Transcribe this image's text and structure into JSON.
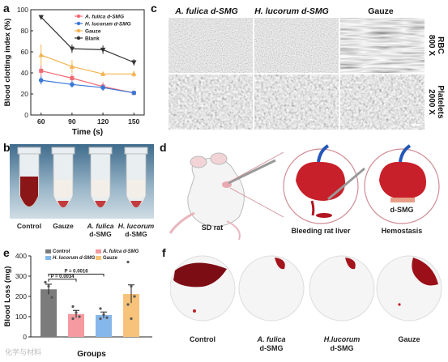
{
  "panels": {
    "a": "a",
    "b": "b",
    "c": "c",
    "d": "d",
    "e": "e",
    "f": "f"
  },
  "chart_data": [
    {
      "type": "line",
      "panel": "a",
      "xlabel": "Time (s)",
      "ylabel": "Blood clotting index (%)",
      "x": [
        60,
        90,
        120,
        150
      ],
      "xticks": [
        "60",
        "90",
        "120",
        "150"
      ],
      "yticks": [
        "0",
        "20",
        "40",
        "60",
        "80",
        "100"
      ],
      "ylim": [
        0,
        100
      ],
      "legend_placement": "top-right",
      "series": [
        {
          "name": "A. fulica d-SMG",
          "color": "#f06b74",
          "marker": "square",
          "values": [
            42,
            35,
            27,
            21
          ],
          "err": [
            5,
            4,
            4,
            2
          ]
        },
        {
          "name": "H. lucorum d-SMG",
          "color": "#3a78d8",
          "marker": "circle",
          "values": [
            33,
            29,
            26,
            21
          ],
          "err": [
            4,
            3,
            3,
            2
          ]
        },
        {
          "name": "Gauze",
          "color": "#f5b24d",
          "marker": "triangle",
          "values": [
            57,
            46,
            39,
            39
          ],
          "err": [
            10,
            6,
            2,
            3
          ]
        },
        {
          "name": "Blank",
          "color": "#333333",
          "marker": "down-triangle",
          "values": [
            93,
            63,
            62,
            50
          ],
          "err": [
            2,
            4,
            4,
            3
          ]
        }
      ]
    },
    {
      "type": "bar",
      "panel": "e",
      "xlabel": "Groups",
      "ylabel": "Blood Loss (mg)",
      "yticks": [
        "0",
        "100",
        "200",
        "300",
        "400"
      ],
      "ylim": [
        0,
        400
      ],
      "legend_placement": "top",
      "series": [
        {
          "name": "Control",
          "color": "#7b7b7b",
          "value": 235,
          "err": 25,
          "points": [
            270,
            250,
            195
          ]
        },
        {
          "name": "A. fulica d-SMG",
          "color": "#f59aa0",
          "value": 113,
          "err": 18,
          "points": [
            150,
            120,
            100,
            90
          ]
        },
        {
          "name": "H. lucorum d-SMG",
          "color": "#86b7ea",
          "value": 108,
          "err": 15,
          "points": [
            140,
            110,
            95,
            90
          ]
        },
        {
          "name": "Gauze",
          "color": "#f7c37a",
          "value": 212,
          "err": 45,
          "points": [
            370,
            250,
            200,
            160,
            90
          ]
        }
      ],
      "annotations": [
        "P = 0.0016",
        "P = 0.0034"
      ]
    }
  ],
  "panel_b": {
    "labels": [
      "Control",
      "Gauze",
      "A. fulica\nd-SMG",
      "H. lucorum\nd-SMG"
    ]
  },
  "panel_c": {
    "columns": [
      "A. fulica d-SMG",
      "H. lucorum d-SMG",
      "Gauze"
    ],
    "rows": [
      "RBC\n800 X",
      "Platelets\n2000 X"
    ]
  },
  "panel_d": {
    "labels": {
      "rat": "SD rat",
      "liver": "Bleeding rat liver",
      "hemo": "Hemostasis",
      "dsmg": "d-SMG"
    }
  },
  "panel_f": {
    "labels": [
      "Control",
      "A. fulica\nd-SMG",
      "H.lucorum\nd-SMG",
      "Gauze"
    ]
  },
  "watermark": "化学与材料"
}
